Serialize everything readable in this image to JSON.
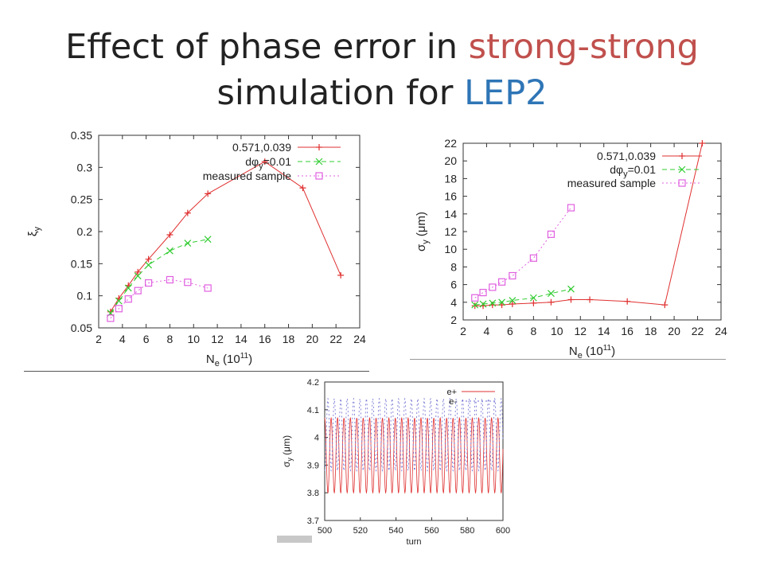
{
  "title": {
    "line1_a": "Effect of phase error in ",
    "line1_b": "strong-strong",
    "line2_a": "simulation for ",
    "line2_b": "LEP2"
  },
  "colors": {
    "title_text": "#222222",
    "title_highlight1": "#c0504d",
    "title_highlight2": "#2e75b6",
    "series_red": "#e03030",
    "series_green": "#30cc30",
    "series_magenta": "#e060e0",
    "series_blue": "#6a6ad0"
  },
  "chart_data": [
    {
      "type": "line",
      "xlabel": "N",
      "xlabel_sub": "e",
      "xlabel_tail": " (10",
      "xlabel_sup": "11",
      "xlabel_end": ")",
      "ylabel": "ξ",
      "ylabel_sub": "y",
      "xlim": [
        2,
        24
      ],
      "ylim": [
        0.05,
        0.35
      ],
      "xticks": [
        "2",
        "4",
        "6",
        "8",
        "10",
        "12",
        "14",
        "16",
        "18",
        "20",
        "22",
        "24"
      ],
      "yticks": [
        "0.05",
        "0.1",
        "0.15",
        "0.2",
        "0.25",
        "0.3",
        "0.35"
      ],
      "legend_position": "top-right",
      "grid": false,
      "series": [
        {
          "name": "0.571,0.039",
          "color": "#e03030",
          "marker": "plus",
          "dash": "solid",
          "x": [
            3.0,
            3.7,
            4.5,
            5.3,
            6.2,
            8.0,
            9.5,
            11.2,
            16.0,
            19.2,
            22.4
          ],
          "y": [
            0.075,
            0.096,
            0.116,
            0.137,
            0.157,
            0.195,
            0.229,
            0.259,
            0.309,
            0.268,
            0.132
          ]
        },
        {
          "name": "dφ",
          "name_sub": "y",
          "name_tail": "=0.01",
          "color": "#30cc30",
          "marker": "x",
          "dash": "dashed",
          "x": [
            3.0,
            3.7,
            4.5,
            5.3,
            6.2,
            8.0,
            9.5,
            11.2
          ],
          "y": [
            0.073,
            0.092,
            0.112,
            0.131,
            0.148,
            0.17,
            0.182,
            0.188
          ]
        },
        {
          "name": "measured sample",
          "color": "#e060e0",
          "marker": "square",
          "dash": "dotted",
          "x": [
            3.0,
            3.7,
            4.5,
            5.3,
            6.2,
            8.0,
            9.5,
            11.2
          ],
          "y": [
            0.065,
            0.08,
            0.095,
            0.108,
            0.12,
            0.125,
            0.121,
            0.112
          ]
        }
      ]
    },
    {
      "type": "line",
      "xlabel": "N",
      "xlabel_sub": "e",
      "xlabel_tail": " (10",
      "xlabel_sup": "11",
      "xlabel_end": ")",
      "ylabel": "σ",
      "ylabel_sub": "y",
      "ylabel_tail": " (μm)",
      "xlim": [
        2,
        24
      ],
      "ylim": [
        2,
        22
      ],
      "xticks": [
        "2",
        "4",
        "6",
        "8",
        "10",
        "12",
        "14",
        "16",
        "18",
        "20",
        "22",
        "24"
      ],
      "yticks": [
        "2",
        "4",
        "6",
        "8",
        "10",
        "12",
        "14",
        "16",
        "18",
        "20",
        "22"
      ],
      "legend_position": "top-right",
      "grid": false,
      "series": [
        {
          "name": "0.571,0.039",
          "color": "#e03030",
          "marker": "plus",
          "dash": "solid",
          "x": [
            3.0,
            3.7,
            4.5,
            5.3,
            6.2,
            8.0,
            9.5,
            11.2,
            12.8,
            16.0,
            19.2,
            22.4
          ],
          "y": [
            3.6,
            3.6,
            3.7,
            3.7,
            3.8,
            3.9,
            4.0,
            4.3,
            4.3,
            4.1,
            3.7,
            22.0
          ]
        },
        {
          "name": "dφ",
          "name_sub": "y",
          "name_tail": "=0.01",
          "color": "#30cc30",
          "marker": "x",
          "dash": "dashed",
          "x": [
            3.0,
            3.7,
            4.5,
            5.3,
            6.2,
            8.0,
            9.5,
            11.2
          ],
          "y": [
            3.7,
            3.8,
            3.9,
            4.0,
            4.2,
            4.5,
            5.0,
            5.5
          ]
        },
        {
          "name": "measured sample",
          "color": "#e060e0",
          "marker": "square",
          "dash": "dotted",
          "x": [
            3.0,
            3.7,
            4.5,
            5.3,
            6.2,
            8.0,
            9.5,
            11.2
          ],
          "y": [
            4.5,
            5.1,
            5.7,
            6.3,
            7.0,
            9.0,
            11.7,
            14.7
          ]
        }
      ]
    },
    {
      "type": "line",
      "xlabel": "turn",
      "ylabel": "σ",
      "ylabel_sub": "y",
      "ylabel_tail": " (μm)",
      "xlim": [
        500,
        600
      ],
      "ylim": [
        3.7,
        4.2
      ],
      "xticks": [
        "500",
        "520",
        "540",
        "560",
        "580",
        "600"
      ],
      "yticks": [
        "3.7",
        "3.8",
        "3.9",
        "4",
        "4.1",
        "4.2"
      ],
      "legend_position": "top-right",
      "grid": false,
      "series": [
        {
          "name": "e+",
          "color": "#e03030",
          "dash": "solid",
          "oscillation_period_turns": 3.6,
          "min": 3.8,
          "max": 4.07
        },
        {
          "name": "e-",
          "color": "#6a6ad0",
          "dash": "dotted",
          "oscillation_period_turns": 3.6,
          "min": 3.88,
          "max": 4.14
        }
      ]
    }
  ]
}
